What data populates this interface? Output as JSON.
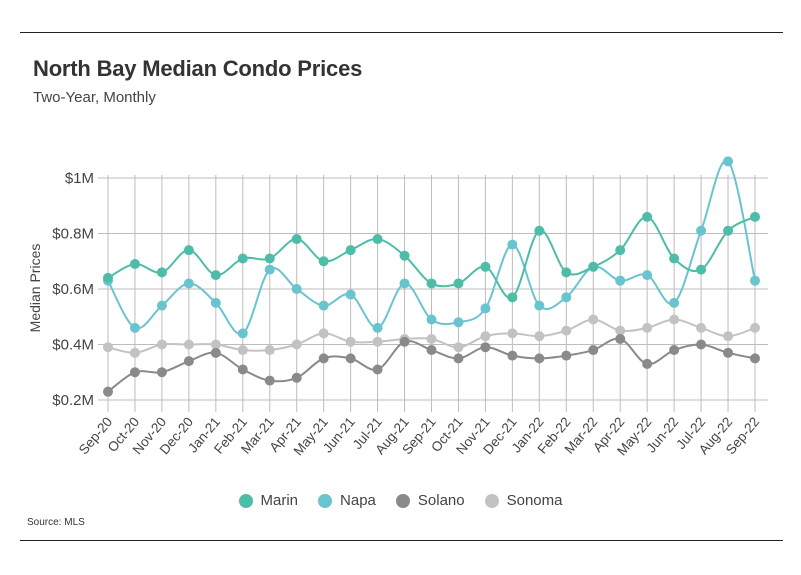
{
  "title": "North Bay Median Condo Prices",
  "subtitle": "Two-Year, Monthly",
  "source": "Source:  MLS",
  "colors": {
    "Marin": "#4dbda8",
    "Napa": "#69c4cf",
    "Solano": "#8a8a8a",
    "Sonoma": "#c2c2c2"
  },
  "chart_data": {
    "type": "line",
    "title": "",
    "xlabel": "",
    "ylabel": "Median Prices",
    "ylim": [
      0.2,
      1.08
    ],
    "yticks": [
      0.2,
      0.4,
      0.6,
      0.8,
      1.0
    ],
    "ytick_labels": [
      "$0.2M",
      "$0.4M",
      "$0.6M",
      "$0.8M",
      "$1M"
    ],
    "grid": true,
    "legend_position": "bottom",
    "categories": [
      "Sep-20",
      "Oct-20",
      "Nov-20",
      "Dec-20",
      "Jan-21",
      "Feb-21",
      "Mar-21",
      "Apr-21",
      "May-21",
      "Jun-21",
      "Jul-21",
      "Aug-21",
      "Sep-21",
      "Oct-21",
      "Nov-21",
      "Dec-21",
      "Jan-22",
      "Feb-22",
      "Mar-22",
      "Apr-22",
      "May-22",
      "Jun-22",
      "Jul-22",
      "Aug-22",
      "Sep-22"
    ],
    "series": [
      {
        "name": "Marin",
        "values": [
          0.64,
          0.69,
          0.66,
          0.74,
          0.65,
          0.71,
          0.71,
          0.78,
          0.7,
          0.74,
          0.78,
          0.72,
          0.62,
          0.62,
          0.68,
          0.57,
          0.81,
          0.66,
          0.68,
          0.74,
          0.86,
          0.71,
          0.67,
          0.81,
          0.86
        ]
      },
      {
        "name": "Napa",
        "values": [
          0.63,
          0.46,
          0.54,
          0.62,
          0.55,
          0.44,
          0.67,
          0.6,
          0.54,
          0.58,
          0.46,
          0.62,
          0.49,
          0.48,
          0.53,
          0.76,
          0.54,
          0.57,
          0.68,
          0.63,
          0.65,
          0.55,
          0.81,
          1.06,
          0.63
        ]
      },
      {
        "name": "Solano",
        "values": [
          0.23,
          0.3,
          0.3,
          0.34,
          0.37,
          0.31,
          0.27,
          0.28,
          0.35,
          0.35,
          0.31,
          0.41,
          0.38,
          0.35,
          0.39,
          0.36,
          0.35,
          0.36,
          0.38,
          0.42,
          0.33,
          0.38,
          0.4,
          0.37,
          0.35
        ]
      },
      {
        "name": "Sonoma",
        "values": [
          0.39,
          0.37,
          0.4,
          0.4,
          0.4,
          0.38,
          0.38,
          0.4,
          0.44,
          0.41,
          0.41,
          0.42,
          0.42,
          0.39,
          0.43,
          0.44,
          0.43,
          0.45,
          0.49,
          0.45,
          0.46,
          0.49,
          0.46,
          0.43,
          0.46
        ]
      }
    ]
  }
}
